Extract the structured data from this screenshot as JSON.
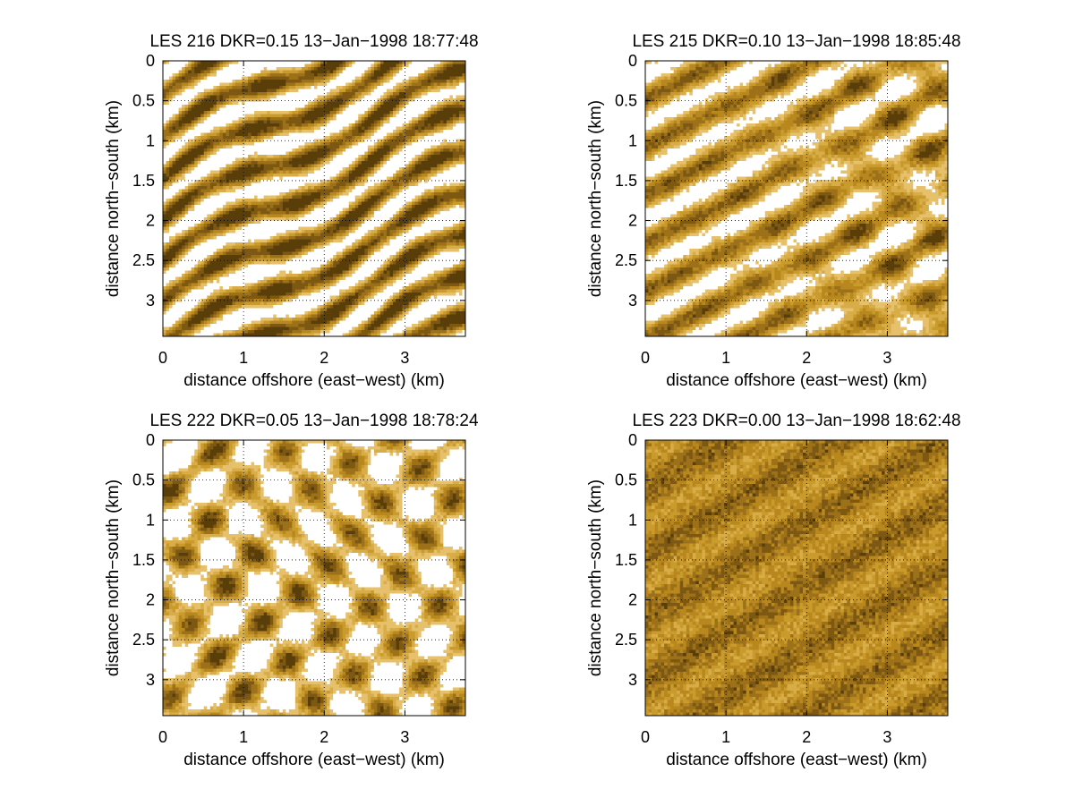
{
  "colors": {
    "background": "#ffffff",
    "palette": [
      "#5a3e0a",
      "#7d5813",
      "#9c7119",
      "#b8881f",
      "#c99a2c",
      "#d8ad48",
      "#e6c06a",
      "#ffffff"
    ]
  },
  "chart_data": [
    {
      "type": "heatmap",
      "title": "LES 216 DKR=0.15 13−Jan−1998 18:77:48",
      "xlabel": "distance offshore (east−west) (km)",
      "ylabel": "distance north−south (km)",
      "xlim": [
        0,
        3.75
      ],
      "ylim": [
        0,
        3.45
      ],
      "y_reversed": true,
      "xticks": [
        0,
        1,
        2,
        3
      ],
      "yticks": [
        0,
        0.5,
        1,
        1.5,
        2,
        2.5,
        3
      ],
      "xtick_labels": [
        "0",
        "1",
        "2",
        "3"
      ],
      "ytick_labels": [
        "0",
        "0.5",
        "1",
        "1.5",
        "2",
        "2.5",
        "3"
      ],
      "grid": true,
      "colormap": "copper (brown to gold), white where saturated",
      "pattern": "long diagonal streaks",
      "white_fraction": 0.3,
      "seed": 216
    },
    {
      "type": "heatmap",
      "title": "LES 215 DKR=0.10 13−Jan−1998 18:85:48",
      "xlabel": "distance offshore (east−west) (km)",
      "ylabel": "distance north−south (km)",
      "xlim": [
        0,
        3.75
      ],
      "ylim": [
        0,
        3.45
      ],
      "y_reversed": true,
      "xticks": [
        0,
        1,
        2,
        3
      ],
      "yticks": [
        0,
        0.5,
        1,
        1.5,
        2,
        2.5,
        3
      ],
      "xtick_labels": [
        "0",
        "1",
        "2",
        "3"
      ],
      "ytick_labels": [
        "0",
        "0.5",
        "1",
        "1.5",
        "2",
        "2.5",
        "3"
      ],
      "grid": true,
      "colormap": "copper (brown to gold), white where saturated",
      "pattern": "diagonal streaks breaking into blobs",
      "white_fraction": 0.35,
      "seed": 215
    },
    {
      "type": "heatmap",
      "title": "LES 222 DKR=0.05 13−Jan−1998 18:78:24",
      "xlabel": "distance offshore (east−west) (km)",
      "ylabel": "distance north−south (km)",
      "xlim": [
        0,
        3.75
      ],
      "ylim": [
        0,
        3.45
      ],
      "y_reversed": true,
      "xticks": [
        0,
        1,
        2,
        3
      ],
      "yticks": [
        0,
        0.5,
        1,
        1.5,
        2,
        2.5,
        3
      ],
      "xtick_labels": [
        "0",
        "1",
        "2",
        "3"
      ],
      "ytick_labels": [
        "0",
        "0.5",
        "1",
        "1.5",
        "2",
        "2.5",
        "3"
      ],
      "grid": true,
      "colormap": "copper (brown to gold), white where saturated",
      "pattern": "scattered blobs",
      "white_fraction": 0.45,
      "seed": 222
    },
    {
      "type": "heatmap",
      "title": "LES 223 DKR=0.00 13−Jan−1998 18:62:48",
      "xlabel": "distance offshore (east−west) (km)",
      "ylabel": "distance north−south (km)",
      "xlim": [
        0,
        3.75
      ],
      "ylim": [
        0,
        3.45
      ],
      "y_reversed": true,
      "xticks": [
        0,
        1,
        2,
        3
      ],
      "yticks": [
        0,
        0.5,
        1,
        1.5,
        2,
        2.5,
        3
      ],
      "xtick_labels": [
        "0",
        "1",
        "2",
        "3"
      ],
      "ytick_labels": [
        "0",
        "0.5",
        "1",
        "1.5",
        "2",
        "2.5",
        "3"
      ],
      "grid": true,
      "colormap": "copper (brown to gold), white where saturated",
      "pattern": "noisy field with faint diagonal bands",
      "white_fraction": 0.02,
      "seed": 223
    }
  ]
}
